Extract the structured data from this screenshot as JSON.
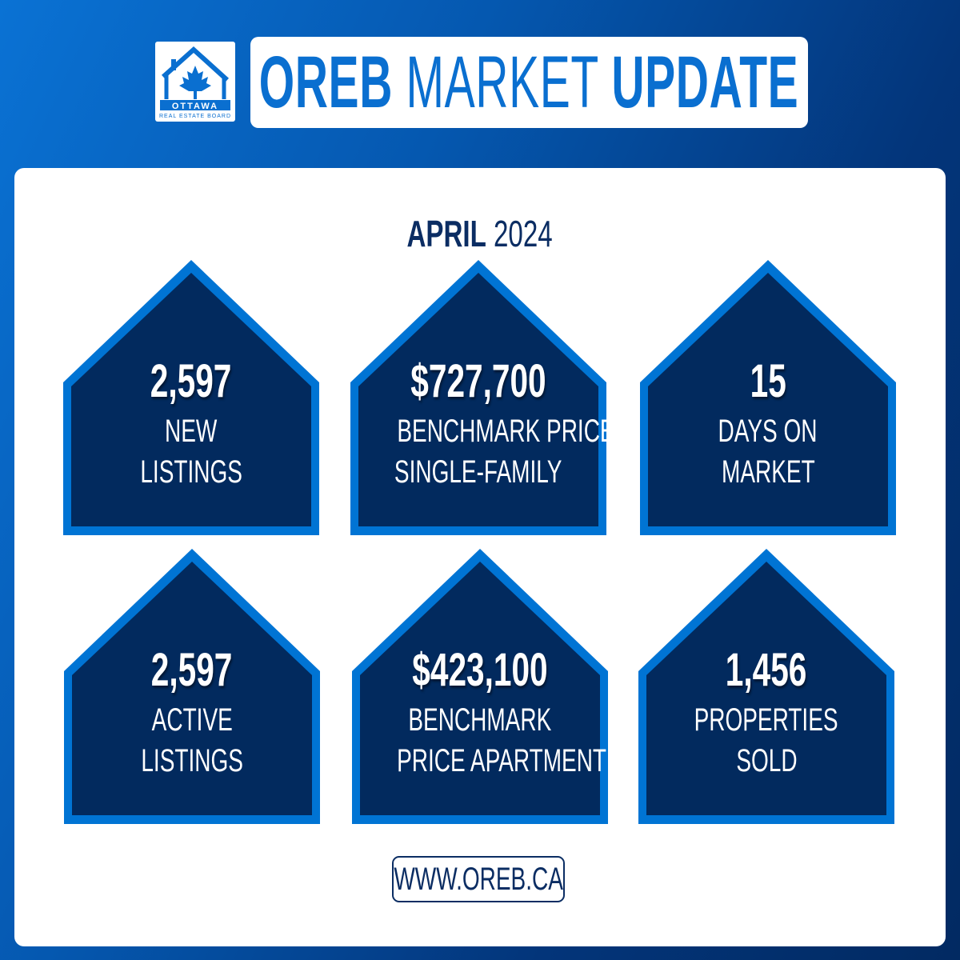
{
  "logo": {
    "text_main": "OTTAWA",
    "text_sub": "REAL ESTATE BOARD",
    "icon": "house-maple-leaf-icon"
  },
  "title": {
    "bold_1": "OREB",
    "light": "MARKET",
    "bold_2": "UPDATE"
  },
  "period": {
    "month": "APRIL",
    "year": "2024"
  },
  "colors": {
    "accent": "#0a6fd0",
    "navy": "#022a5e",
    "house_border": "#0074d4"
  },
  "stats": [
    {
      "value": "2,597",
      "line1": "NEW",
      "line2": "LISTINGS"
    },
    {
      "value": "$727,700",
      "line1": "BENCHMARK PRICE",
      "line2": "SINGLE-FAMILY"
    },
    {
      "value": "15",
      "line1": "DAYS ON",
      "line2": "MARKET"
    },
    {
      "value": "2,597",
      "line1": "ACTIVE",
      "line2": "LISTINGS"
    },
    {
      "value": "$423,100",
      "line1": "BENCHMARK",
      "line2": "PRICE APARTMENT"
    },
    {
      "value": "1,456",
      "line1": "PROPERTIES",
      "line2": "SOLD"
    }
  ],
  "footer": {
    "url": "WWW.OREB.CA"
  }
}
